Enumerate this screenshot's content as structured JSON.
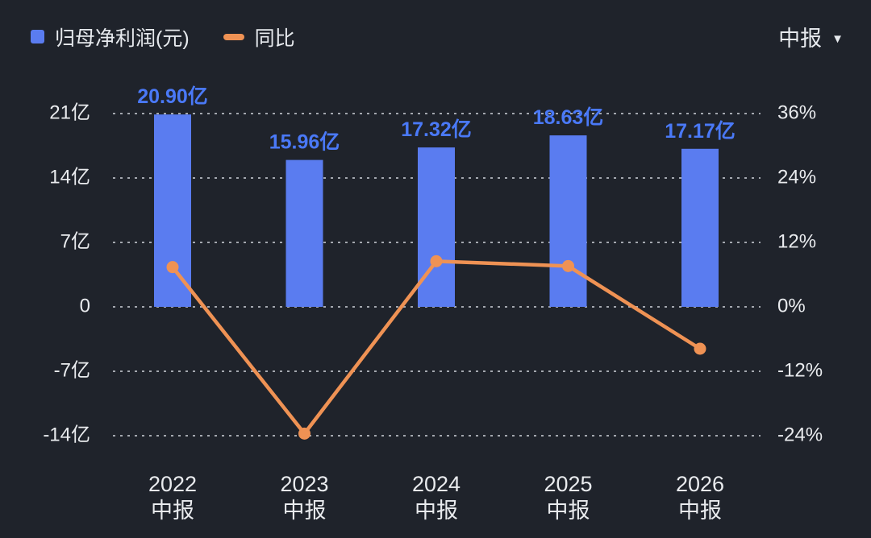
{
  "colors": {
    "background": "#1f232b",
    "bar": "#5a7cf0",
    "bar_label": "#4a79f7",
    "line": "#ef9254",
    "grid": "#c6cad1",
    "axis_text": "#e9ebee",
    "header_text": "#e7eaee"
  },
  "legend": {
    "bar_label": "归母净利润(元)",
    "line_label": "同比"
  },
  "period_selector": {
    "label": "中报"
  },
  "chart_data": {
    "type": "bar+line",
    "categories": [
      [
        "2022",
        "中报"
      ],
      [
        "2023",
        "中报"
      ],
      [
        "2024",
        "中报"
      ],
      [
        "2025",
        "中报"
      ],
      [
        "2026",
        "中报"
      ]
    ],
    "series": [
      {
        "name": "归母净利润(元)",
        "type": "bar",
        "axis": "left",
        "unit": "亿",
        "values": [
          20.9,
          15.96,
          17.32,
          18.63,
          17.17
        ],
        "labels": [
          "20.90亿",
          "15.96亿",
          "17.32亿",
          "18.63亿",
          "17.17亿"
        ]
      },
      {
        "name": "同比",
        "type": "line",
        "axis": "right",
        "unit": "%",
        "values": [
          7.4,
          -23.6,
          8.5,
          7.6,
          -7.8
        ]
      }
    ],
    "left_axis": {
      "label_ticks": [
        "21亿",
        "14亿",
        "7亿",
        "0",
        "-7亿",
        "-14亿"
      ],
      "tick_values": [
        21,
        14,
        7,
        0,
        -7,
        -14
      ]
    },
    "right_axis": {
      "label_ticks": [
        "36%",
        "24%",
        "12%",
        "0%",
        "-12%",
        "-24%"
      ],
      "tick_values": [
        36,
        24,
        12,
        0,
        -12,
        -24
      ]
    },
    "grid": true,
    "legend_position": "top-left"
  }
}
